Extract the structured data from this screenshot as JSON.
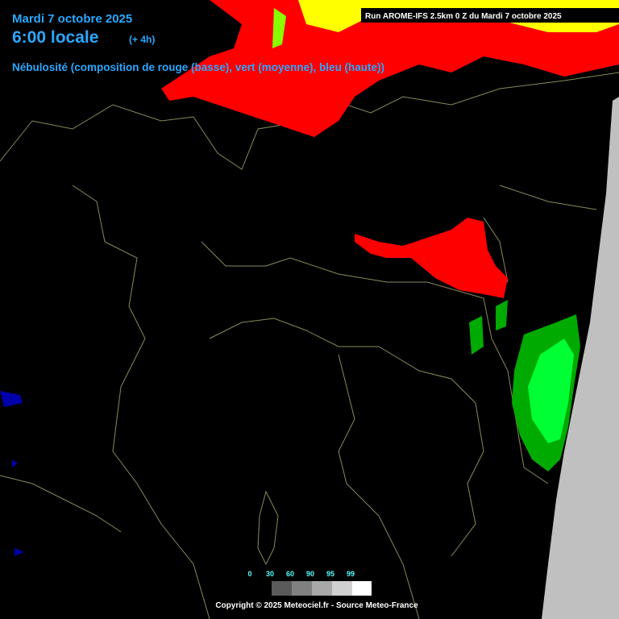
{
  "header": {
    "date": "Mardi 7 octobre 2025",
    "time": "6:00 locale",
    "offset": "(+ 4h)",
    "subtitle": "Nébulosité (composition de rouge (basse), vert (moyenne), bleu (haute))"
  },
  "run": "Run AROME-IFS 2.5km 0 Z du Mardi 7 octobre 2025",
  "legend": {
    "labels": [
      0,
      30,
      60,
      90,
      95,
      99
    ]
  },
  "footer": "Copyright © 2025 Meteociel.fr - Source Meteo-France"
}
